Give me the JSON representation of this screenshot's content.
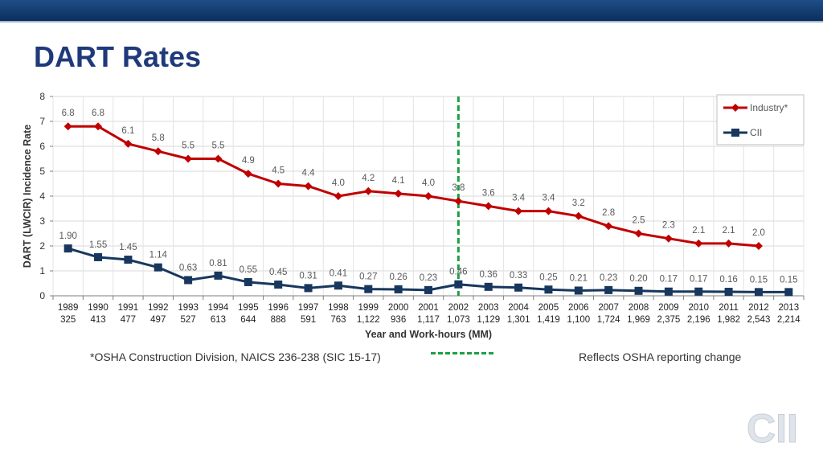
{
  "slide": {
    "title": "DART Rates",
    "footnote": "*OSHA Construction Division, NAICS 236-238 (SIC 15-17)",
    "reporting_note": "Reflects OSHA reporting change",
    "logo_text": "CII"
  },
  "colors": {
    "industry": "#c00000",
    "cii": "#17375e",
    "reporting_line": "#1aa043",
    "title": "#1f3a7a",
    "top_bar": "#0b2f5e"
  },
  "chart_data": {
    "type": "line",
    "xlabel": "Year and Work-hours (MM)",
    "ylabel": "DART (LWCIR) Incidence Rate",
    "ylim": [
      0,
      8
    ],
    "yticks": [
      "0",
      "1",
      "2",
      "3",
      "4",
      "5",
      "6",
      "7",
      "8"
    ],
    "grid": true,
    "legend_position": "top-right",
    "categories": [
      "1989",
      "1990",
      "1991",
      "1992",
      "1993",
      "1994",
      "1995",
      "1996",
      "1997",
      "1998",
      "1999",
      "2000",
      "2001",
      "2002",
      "2003",
      "2004",
      "2005",
      "2006",
      "2007",
      "2008",
      "2009",
      "2010",
      "2011",
      "2012",
      "2013"
    ],
    "workhours": [
      "325",
      "413",
      "477",
      "497",
      "527",
      "613",
      "644",
      "888",
      "591",
      "763",
      "1,122",
      "936",
      "1,117",
      "1,073",
      "1,129",
      "1,301",
      "1,419",
      "1,100",
      "1,724",
      "1,969",
      "2,375",
      "2,196",
      "1,982",
      "2,543",
      "2,214"
    ],
    "series": [
      {
        "name": "Industry*",
        "values": [
          6.8,
          6.8,
          6.1,
          5.8,
          5.5,
          5.5,
          4.9,
          4.5,
          4.4,
          4.0,
          4.2,
          4.1,
          4.0,
          3.8,
          3.6,
          3.4,
          3.4,
          3.2,
          2.8,
          2.5,
          2.3,
          2.1,
          2.1,
          2.0,
          null
        ],
        "labels": [
          "6.8",
          "6.8",
          "6.1",
          "5.8",
          "5.5",
          "5.5",
          "4.9",
          "4.5",
          "4.4",
          "4.0",
          "4.2",
          "4.1",
          "4.0",
          "3.8",
          "3.6",
          "3.4",
          "3.4",
          "3.2",
          "2.8",
          "2.5",
          "2.3",
          "2.1",
          "2.1",
          "2.0",
          ""
        ]
      },
      {
        "name": "CII",
        "values": [
          1.9,
          1.55,
          1.45,
          1.14,
          0.63,
          0.81,
          0.55,
          0.45,
          0.31,
          0.41,
          0.27,
          0.26,
          0.23,
          0.46,
          0.36,
          0.33,
          0.25,
          0.21,
          0.23,
          0.2,
          0.17,
          0.17,
          0.16,
          0.15,
          0.15
        ],
        "labels": [
          "1.90",
          "1.55",
          "1.45",
          "1.14",
          "0.63",
          "0.81",
          "0.55",
          "0.45",
          "0.31",
          "0.41",
          "0.27",
          "0.26",
          "0.23",
          "0.46",
          "0.36",
          "0.33",
          "0.25",
          "0.21",
          "0.23",
          "0.20",
          "0.17",
          "0.17",
          "0.16",
          "0.15",
          "0.15"
        ]
      }
    ],
    "reporting_change_year": "2002"
  }
}
